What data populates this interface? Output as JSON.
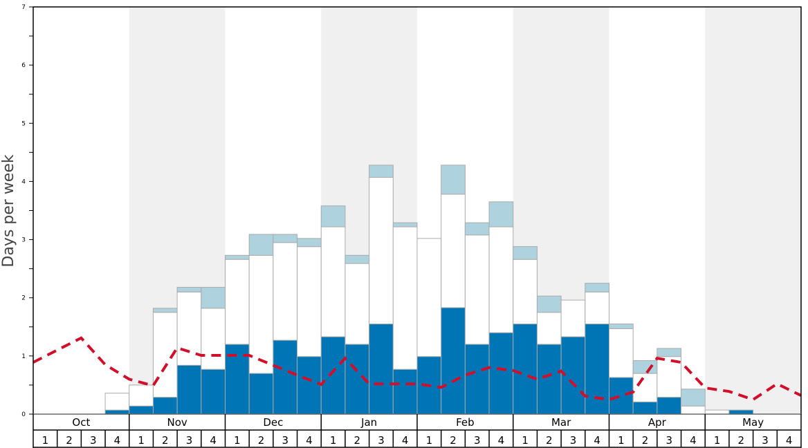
{
  "chart_data": {
    "type": "bar",
    "stacked": true,
    "title": "",
    "xlabel": "",
    "ylabel": "Days per week",
    "ylim": [
      0,
      7
    ],
    "yticks": [
      "0",
      "1",
      "2",
      "3",
      "4",
      "5",
      "6",
      "7"
    ],
    "months": [
      "Oct",
      "Nov",
      "Dec",
      "Jan",
      "Feb",
      "Mar",
      "Apr",
      "May"
    ],
    "weeks": [
      "1",
      "2",
      "3",
      "4"
    ],
    "shaded_months": [
      "Nov",
      "Jan",
      "Mar",
      "May"
    ],
    "colors": {
      "dark": "#0075b5",
      "white": "#ffffff",
      "light": "#aed3df",
      "line": "#d0102a",
      "band": "#f0f0f0",
      "edge": "#aaaaaa"
    },
    "series": [
      {
        "name": "dark",
        "values": [
          0,
          0,
          0,
          0.07,
          0.14,
          0.29,
          0.84,
          0.77,
          1.2,
          0.7,
          1.27,
          0.99,
          1.33,
          1.2,
          1.55,
          0.77,
          0.99,
          1.83,
          1.2,
          1.4,
          1.55,
          1.2,
          1.33,
          1.55,
          0.63,
          0.21,
          0.29,
          0,
          0,
          0.07,
          0,
          0
        ]
      },
      {
        "name": "white",
        "values": [
          0,
          0,
          0,
          0.29,
          0.36,
          1.46,
          1.26,
          1.05,
          1.46,
          2.03,
          1.68,
          1.89,
          1.89,
          1.39,
          2.52,
          2.45,
          2.03,
          1.95,
          1.88,
          1.82,
          1.11,
          0.55,
          0.63,
          0.55,
          0.84,
          0.49,
          0.7,
          0.14,
          0.07,
          0,
          0,
          0
        ]
      },
      {
        "name": "light",
        "values": [
          0,
          0,
          0,
          0,
          0,
          0.07,
          0.08,
          0.36,
          0.07,
          0.36,
          0.14,
          0.14,
          0.36,
          0.14,
          0.21,
          0.07,
          0,
          0.5,
          0.21,
          0.43,
          0.22,
          0.28,
          0,
          0.15,
          0.08,
          0.22,
          0.14,
          0.29,
          0,
          0,
          0,
          0
        ]
      }
    ],
    "line": {
      "name": "average",
      "style": "dashed",
      "values": [
        0.89,
        1.1,
        1.31,
        0.85,
        0.6,
        0.49,
        1.14,
        1.01,
        1.01,
        1.01,
        0.84,
        0.67,
        0.51,
        0.96,
        0.52,
        0.52,
        0.52,
        0.46,
        0.67,
        0.8,
        0.75,
        0.6,
        0.74,
        0.31,
        0.25,
        0.38,
        0.96,
        0.89,
        0.45,
        0.39,
        0.25,
        0.52,
        0.32
      ]
    },
    "grid": false,
    "legend": "none"
  }
}
